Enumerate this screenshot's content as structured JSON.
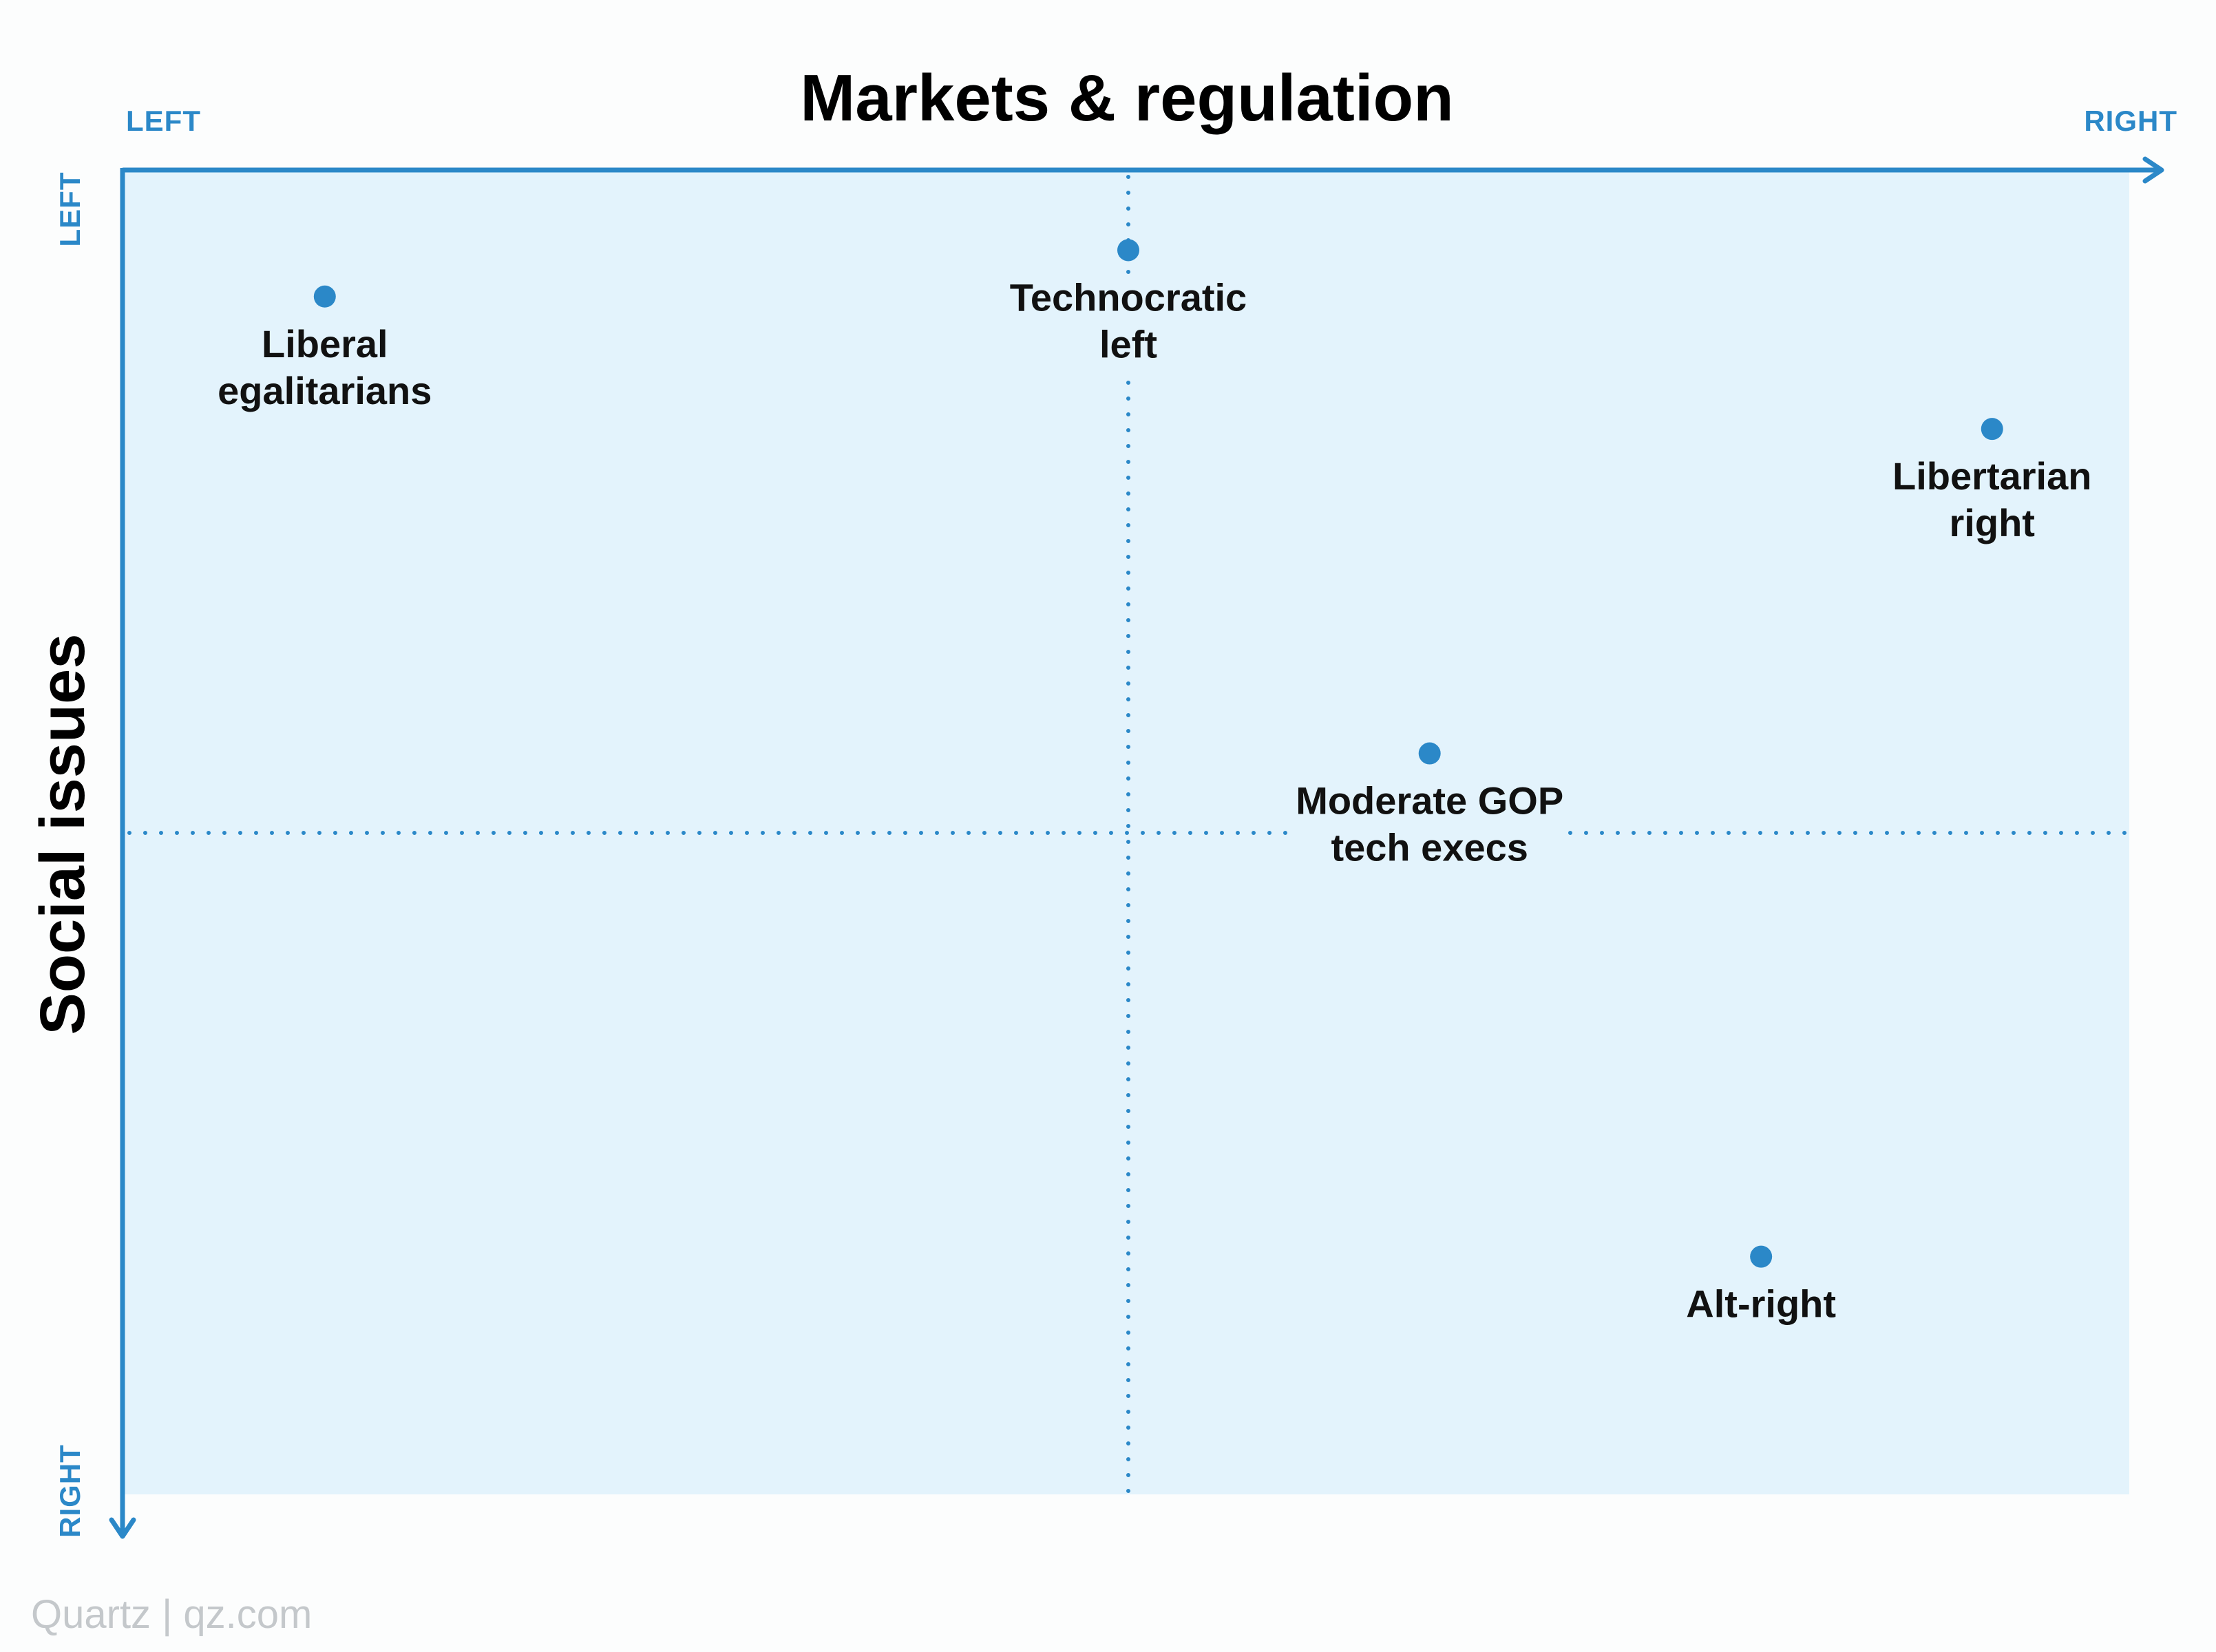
{
  "chart_data": {
    "type": "scatter",
    "title": "Markets & regulation",
    "xlabel": "Markets & regulation",
    "ylabel": "Social issues",
    "x_axis": {
      "start_label": "LEFT",
      "end_label": "RIGHT"
    },
    "y_axis": {
      "start_label": "LEFT",
      "end_label": "RIGHT",
      "direction": "top-to-bottom"
    },
    "xlim": [
      -1,
      1
    ],
    "ylim": [
      -1,
      1
    ],
    "grid": false,
    "points": [
      {
        "name": "Liberal egalitarians",
        "lines": [
          "Liberal",
          "egalitarians"
        ],
        "x": -0.8,
        "y": -0.81
      },
      {
        "name": "Technocratic left",
        "lines": [
          "Technocratic",
          "left"
        ],
        "x": 0.0,
        "y": -0.88
      },
      {
        "name": "Libertarian right",
        "lines": [
          "Libertarian",
          "right"
        ],
        "x": 0.86,
        "y": -0.61
      },
      {
        "name": "Moderate GOP tech execs",
        "lines": [
          "Moderate GOP",
          "tech execs"
        ],
        "x": 0.3,
        "y": -0.12
      },
      {
        "name": "Alt-right",
        "lines": [
          "Alt-right"
        ],
        "x": 0.63,
        "y": 0.64
      }
    ],
    "colors": {
      "accent": "#2b88c8",
      "background": "#e3f3fc"
    }
  },
  "credit": "Quartz | qz.com"
}
